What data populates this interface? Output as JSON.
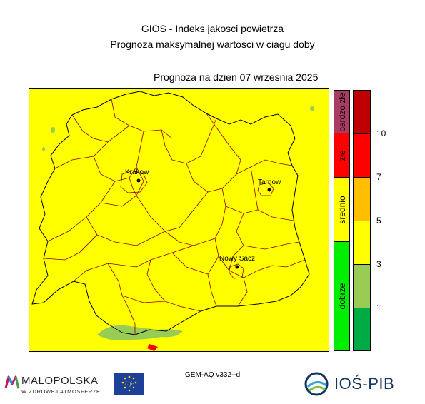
{
  "header": {
    "title": "GIOS - Indeks jakosci powietrza",
    "subtitle": "Prognoza maksymalnej wartosci w ciagu doby",
    "date_line": "Prognoza na dzien  07 wrzesnia 2025"
  },
  "map": {
    "fill_color": "#ffff00",
    "cities": [
      {
        "name": "Krakow"
      },
      {
        "name": "Tarnow"
      },
      {
        "name": "Nowy Sacz"
      }
    ]
  },
  "legend": {
    "categories": [
      {
        "label": "bardzo złe",
        "color": "#a83c62"
      },
      {
        "label": "złe",
        "color": "#ff0000"
      },
      {
        "label": "srednio",
        "color": "#ffff00"
      },
      {
        "label": "dobrze",
        "color": "#00ee00"
      }
    ],
    "scale_colors": [
      "#c00000",
      "#ff0000",
      "#ffbf00",
      "#ffff00",
      "#99cc55",
      "#00aa44"
    ],
    "ticks": [
      "10",
      "7",
      "5",
      "3",
      "1"
    ]
  },
  "footer": {
    "model": "GEM-AQ v332--d",
    "malopolska_name": "MAŁOPOLSKA",
    "malopolska_tagline": "W ZDROWEJ ATMOSFERZE",
    "eu_text": "Life",
    "ios_name": "IOŚ-PIB"
  }
}
